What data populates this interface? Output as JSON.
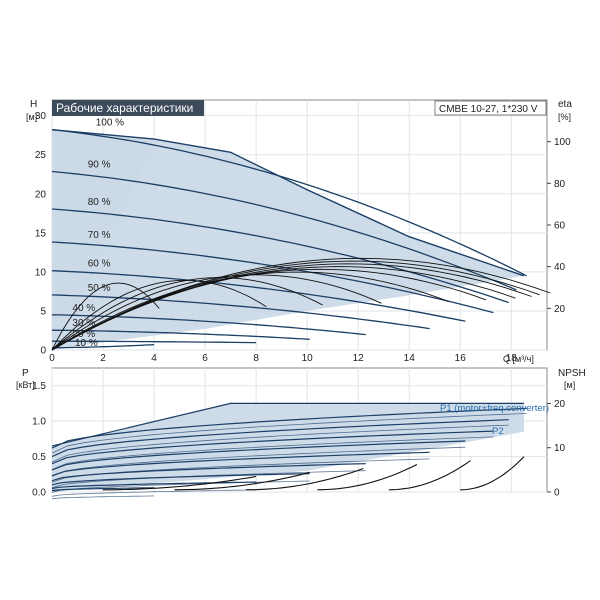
{
  "header": {
    "title": "Рабочие характеристики",
    "model": "CMBE 10-27, 1*230 V"
  },
  "colors": {
    "title_bg": "#3c4a5c",
    "region_fill": "#c9d7e6",
    "region_fill_light": "#e3eef8",
    "curve": "#1c3f66",
    "eff_curve": "#111111"
  },
  "chart_data": [
    {
      "type": "line",
      "name": "head",
      "xlabel": "Q [м³/ч]",
      "ylabel": "H\n[м]",
      "y2label": "eta\n[%]",
      "xlim": [
        0,
        19.4
      ],
      "ylim": [
        0,
        32
      ],
      "y2lim": [
        0,
        120
      ],
      "x_ticks": [
        0,
        2,
        4,
        6,
        8,
        10,
        12,
        14,
        16,
        18
      ],
      "y_ticks": [
        0,
        5,
        10,
        15,
        20,
        25,
        30
      ],
      "y2_ticks": [
        20,
        40,
        60,
        80,
        100
      ],
      "grid": true,
      "envelope": [
        [
          0,
          28.2
        ],
        [
          4,
          27
        ],
        [
          7,
          25.3
        ],
        [
          10,
          20.5
        ],
        [
          14,
          14.5
        ],
        [
          18.5,
          9.5
        ],
        [
          14,
          7
        ],
        [
          10,
          5
        ],
        [
          6,
          2.7
        ],
        [
          2,
          1
        ],
        [
          0,
          0
        ]
      ],
      "speed_curves": [
        {
          "label": "100 %",
          "pct": 100,
          "qmax": 18.6
        },
        {
          "label": "90 %",
          "pct": 90,
          "qmax": 18.2
        },
        {
          "label": "80 %",
          "pct": 80,
          "qmax": 17.9
        },
        {
          "label": "70 %",
          "pct": 70,
          "qmax": 17.3
        },
        {
          "label": "60 %",
          "pct": 60,
          "qmax": 16.2
        },
        {
          "label": "50 %",
          "pct": 50,
          "qmax": 14.8
        },
        {
          "label": "40 %",
          "pct": 40,
          "qmax": 12.3
        },
        {
          "label": "30 %",
          "pct": 30,
          "qmax": 10.1
        },
        {
          "label": "20 %",
          "pct": 20,
          "qmax": 8
        },
        {
          "label": "10 %",
          "pct": 10,
          "qmax": 4
        }
      ]
    },
    {
      "type": "line",
      "name": "power",
      "ylabel": "P\n[кВт]",
      "y2label": "NPSH\n[м]",
      "xlim": [
        0,
        19.4
      ],
      "ylim": [
        0,
        1.75
      ],
      "y2lim": [
        0,
        28
      ],
      "y_ticks": [
        0,
        0.5,
        1.0,
        1.5
      ],
      "y_tick_labels": [
        "0.0",
        "0.5",
        "1.0",
        "1.5"
      ],
      "y2_ticks": [
        0,
        10,
        20
      ],
      "grid": true,
      "series_labels": [
        "P1 (motor+freq.converter)",
        "P2"
      ],
      "envelope": [
        [
          0,
          0.65
        ],
        [
          7,
          1.25
        ],
        [
          18.5,
          1.25
        ],
        [
          18.5,
          0.85
        ],
        [
          10,
          0.3
        ],
        [
          0,
          0
        ]
      ],
      "power_curves": [
        {
          "p0": 0.62,
          "p1": 1.18,
          "qmax": 18.6
        },
        {
          "p0": 0.5,
          "p1": 1.02,
          "qmax": 17.9
        },
        {
          "p0": 0.4,
          "p1": 0.86,
          "qmax": 17.3
        },
        {
          "p0": 0.31,
          "p1": 0.72,
          "qmax": 16.2
        },
        {
          "p0": 0.23,
          "p1": 0.56,
          "qmax": 14.8
        },
        {
          "p0": 0.16,
          "p1": 0.4,
          "qmax": 12.3
        },
        {
          "p0": 0.1,
          "p1": 0.26,
          "qmax": 10.1
        },
        {
          "p0": 0.05,
          "p1": 0.14,
          "qmax": 8
        },
        {
          "p0": 0.02,
          "p1": 0.06,
          "qmax": 4
        }
      ]
    }
  ]
}
